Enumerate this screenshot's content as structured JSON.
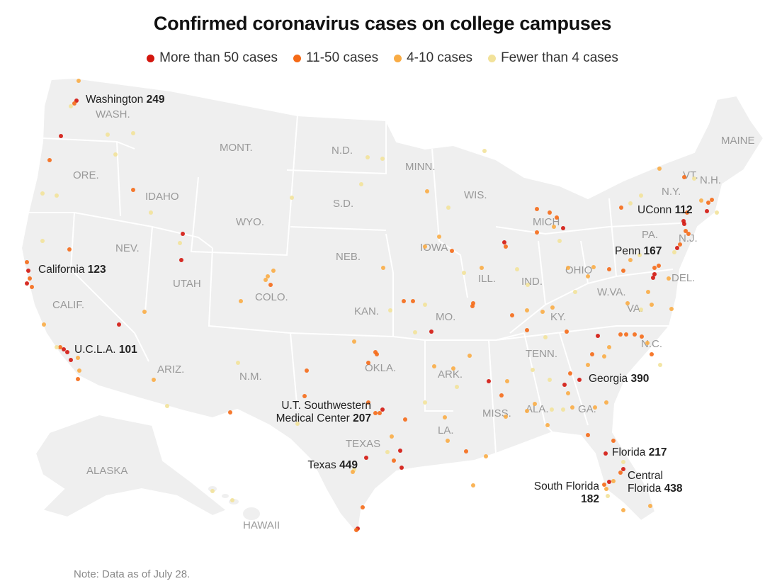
{
  "title": "Confirmed coronavirus cases on college campuses",
  "legend": [
    {
      "label": "More than 50 cases",
      "color": "#d3160e"
    },
    {
      "label": "11-50 cases",
      "color": "#f56a17"
    },
    {
      "label": "4-10 cases",
      "color": "#f9ac45"
    },
    {
      "label": "Fewer than 4 cases",
      "color": "#f2e29a"
    }
  ],
  "states": [
    "WASH.",
    "ORE.",
    "CALIF.",
    "IDAHO",
    "NEV.",
    "MONT.",
    "WYO.",
    "UTAH",
    "ARIZ.",
    "COLO.",
    "N.M.",
    "N.D.",
    "S.D.",
    "NEB.",
    "KAN.",
    "OKLA.",
    "TEXAS",
    "MINN.",
    "IOWA",
    "MO.",
    "ARK.",
    "LA.",
    "WIS.",
    "ILL.",
    "MICH",
    "IND.",
    "OHIO",
    "KY.",
    "TENN.",
    "MISS.",
    "ALA.",
    "GA.",
    "N.C.",
    "VA.",
    "W.VA.",
    "PA.",
    "N.Y.",
    "VT.",
    "N.H.",
    "MAINE",
    "N.J.",
    "DEL.",
    "ALASKA",
    "HAWAII"
  ],
  "callouts": [
    {
      "name": "Washington",
      "count": "249"
    },
    {
      "name": "California",
      "count": "123"
    },
    {
      "name": "U.C.L.A.",
      "count": "101"
    },
    {
      "name": "U.T. Southwestern",
      "name2": "Medical Center",
      "count": "207"
    },
    {
      "name": "Texas",
      "count": "449"
    },
    {
      "name": "Georgia",
      "count": "390"
    },
    {
      "name": "Florida",
      "count": "217"
    },
    {
      "name": "Central",
      "name2": "Florida",
      "count": "438"
    },
    {
      "name": "South Florida",
      "count": "182"
    },
    {
      "name": "UConn",
      "count": "112"
    },
    {
      "name": "Penn",
      "count": "167"
    }
  ],
  "note": "Note: Data as of July 28."
}
